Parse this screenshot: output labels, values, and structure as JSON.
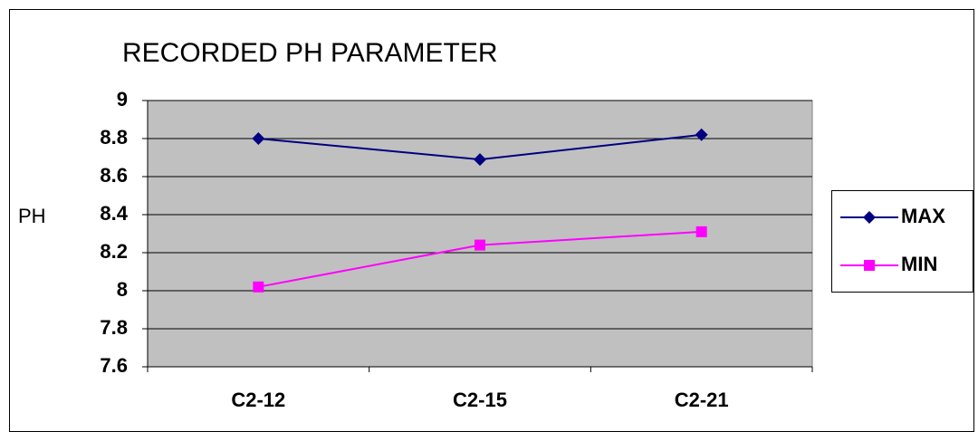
{
  "chart_data": {
    "type": "line",
    "title": "RECORDED PH PARAMETER",
    "y_label": "PH",
    "categories": [
      "C2-12",
      "C2-15",
      "C2-21"
    ],
    "series": [
      {
        "name": "MAX",
        "color": "#000080",
        "marker": "diamond",
        "values": [
          8.8,
          8.69,
          8.82
        ]
      },
      {
        "name": "MIN",
        "color": "#ff00ff",
        "marker": "square",
        "values": [
          8.02,
          8.24,
          8.31
        ]
      }
    ],
    "ylim": [
      7.6,
      9
    ],
    "yticks": [
      7.6,
      7.8,
      8,
      8.2,
      8.4,
      8.6,
      8.8,
      9
    ],
    "grid": true,
    "legend": "right",
    "plot_background": "#c0c0c0"
  }
}
